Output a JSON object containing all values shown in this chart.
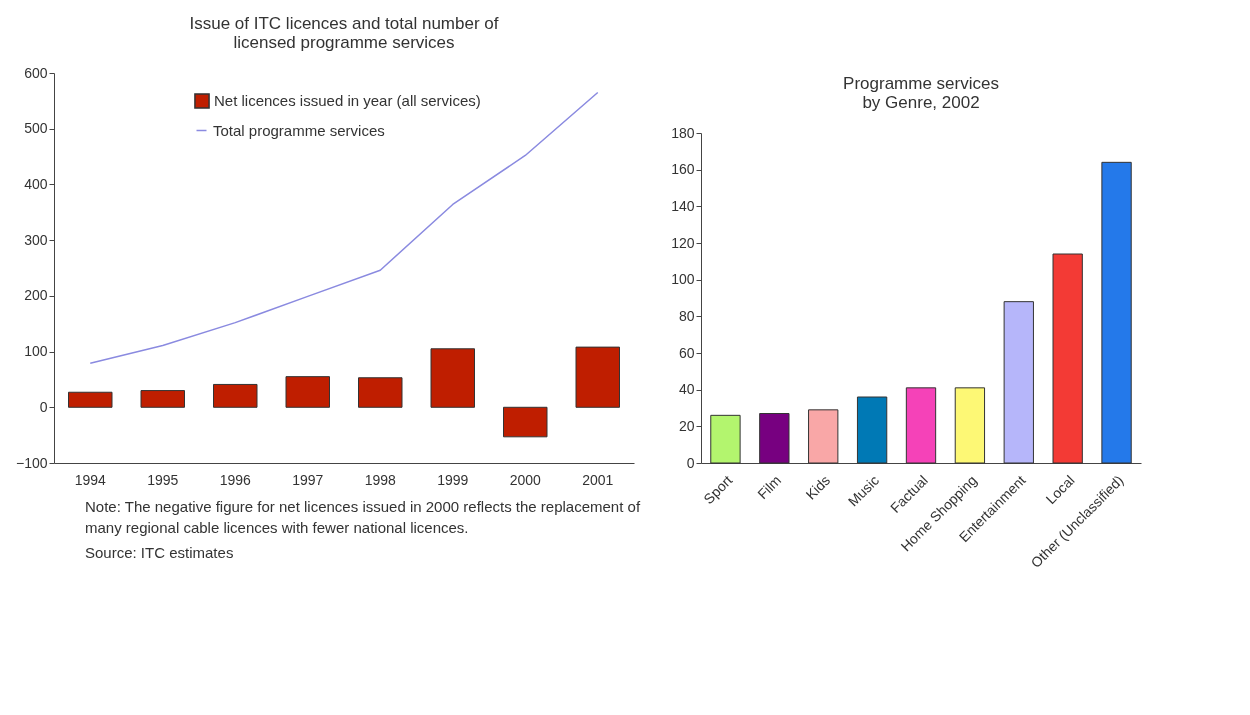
{
  "chart_data": [
    {
      "type": "bar",
      "title": "Issue of ITC licences and total number of\nlicensed programme services",
      "categories": [
        "1994",
        "1995",
        "1996",
        "1997",
        "1998",
        "1999",
        "2000",
        "2001"
      ],
      "series": [
        {
          "name": "Net licences issued in year (all services)",
          "color": "#bf1e00",
          "values": [
            27,
            30,
            41,
            55,
            53,
            105,
            -53,
            108
          ]
        },
        {
          "type": "line",
          "name": "Total programme services",
          "color": "#8a8ae0",
          "values": [
            79,
            111,
            152,
            199,
            246,
            364,
            452,
            565
          ]
        }
      ],
      "ylim": [
        -100,
        600
      ],
      "yticks": [
        -100,
        0,
        100,
        200,
        300,
        400,
        500,
        600
      ],
      "grid": false,
      "legend": "top left",
      "annotations": [
        "Note: The negative figure for net licences issued in 2000 reflects the replacement of many regional cable licences with fewer national licences.",
        "Source: ITC estimates"
      ]
    },
    {
      "type": "bar",
      "title": "Programme services\nby Genre, 2002",
      "categories": [
        "Sport",
        "Film",
        "Kids",
        "Music",
        "Factual",
        "Home Shopping",
        "Entertainment",
        "Local",
        "Other (Unclassified)"
      ],
      "values": [
        26,
        27,
        29,
        36,
        41,
        41,
        88,
        114,
        164
      ],
      "colors": [
        "#b3f56e",
        "#770080",
        "#f9a7a7",
        "#0079b5",
        "#f542b8",
        "#fdf875",
        "#b6b6fa",
        "#f33a35",
        "#2479ea"
      ],
      "ylim": [
        0,
        180
      ],
      "yticks": [
        0,
        20,
        40,
        60,
        80,
        100,
        120,
        140,
        160,
        180
      ],
      "grid": false
    }
  ]
}
